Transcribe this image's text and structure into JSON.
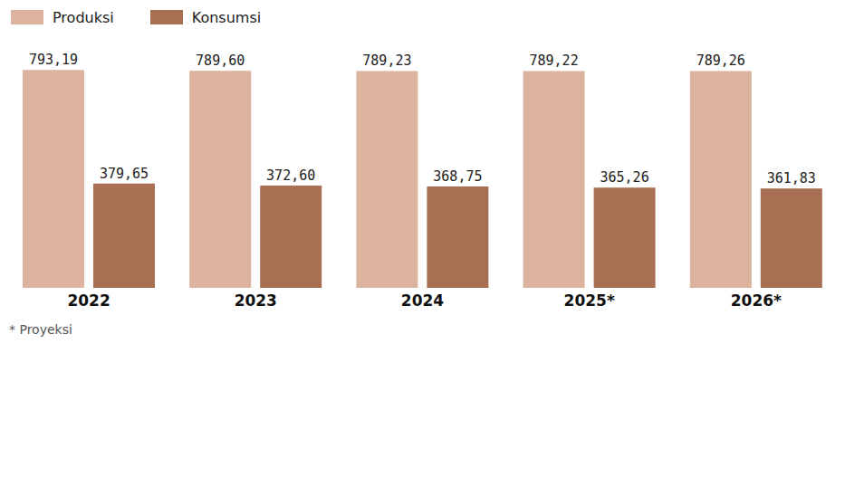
{
  "chart_data": {
    "type": "bar",
    "categories": [
      "2022",
      "2023",
      "2024",
      "2025*",
      "2026*"
    ],
    "series": [
      {
        "name": "Produksi",
        "color": "#dcb39e",
        "values": [
          793.19,
          789.6,
          789.23,
          789.22,
          789.26
        ],
        "value_labels": [
          "793,19",
          "789,60",
          "789,23",
          "789,22",
          "789,26"
        ]
      },
      {
        "name": "Konsumsi",
        "color": "#a86f52",
        "values": [
          379.65,
          372.6,
          368.75,
          365.26,
          361.83
        ],
        "value_labels": [
          "379,65",
          "372,60",
          "368,75",
          "365,26",
          "361,83"
        ]
      }
    ],
    "ylim": [
      0,
      850
    ],
    "data_labels": true,
    "tick_labels": "x",
    "legend": "top-left",
    "grid": false,
    "footnote": "* Proyeksi"
  }
}
